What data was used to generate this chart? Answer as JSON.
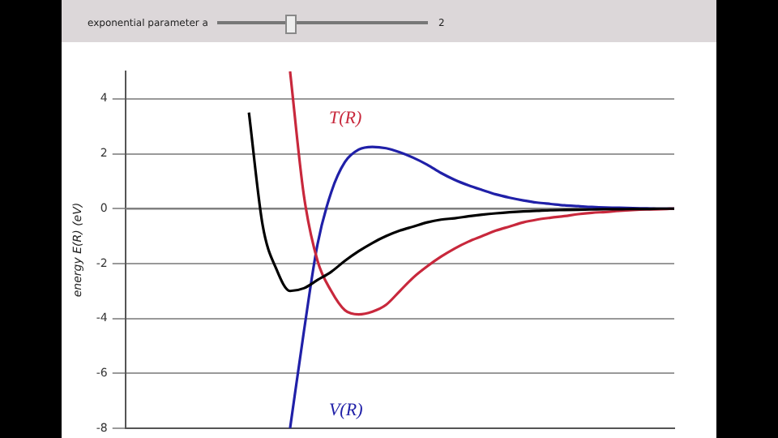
{
  "chart_data": {
    "type": "line",
    "ylabel": "energy E(R) (eV)",
    "annotations": [
      "exponential parameter a",
      "2"
    ],
    "categories": [
      null,
      null,
      null,
      null,
      null,
      null,
      null,
      null,
      null,
      null,
      null,
      null,
      null,
      null,
      null,
      null,
      null,
      null,
      null,
      null,
      null,
      null,
      null,
      null,
      null,
      null,
      null,
      null,
      null,
      null,
      null,
      null,
      null,
      null,
      null,
      null,
      null,
      null,
      null,
      null,
      null
    ],
    "series": [
      {
        "color": "#000000",
        "values": [
          null,
          null,
          null,
          null,
          null,
          null,
          null,
          null,
          null,
          3.5,
          -0.6,
          -2.2,
          -3.0,
          -2.9,
          -2.6,
          -2.3,
          -1.9,
          -1.55,
          -1.25,
          -1.0,
          -0.8,
          -0.65,
          -0.5,
          -0.4,
          -0.35,
          -0.28,
          -0.22,
          -0.17,
          -0.13,
          -0.1,
          -0.08,
          -0.06,
          -0.05,
          -0.04,
          -0.03,
          -0.02,
          -0.02,
          -0.01,
          -0.01,
          0,
          0
        ]
      },
      {
        "name": "T(R)",
        "color": "#c8283c",
        "values": [
          null,
          null,
          null,
          null,
          null,
          null,
          null,
          null,
          null,
          null,
          null,
          null,
          5,
          0.5,
          -1.9,
          -3.0,
          -3.7,
          -3.85,
          -3.75,
          -3.5,
          -3.0,
          -2.5,
          -2.1,
          -1.75,
          -1.45,
          -1.2,
          -1.0,
          -0.8,
          -0.65,
          -0.5,
          -0.4,
          -0.33,
          -0.27,
          -0.2,
          -0.15,
          -0.12,
          -0.08,
          -0.05,
          -0.03,
          -0.02,
          0
        ]
      },
      {
        "name": "V(R)",
        "color": "#2020a8",
        "values": [
          null,
          null,
          null,
          null,
          null,
          null,
          null,
          null,
          null,
          null,
          null,
          null,
          -8,
          -4.5,
          -1.3,
          0.6,
          1.7,
          2.15,
          2.25,
          2.2,
          2.05,
          1.85,
          1.6,
          1.3,
          1.05,
          0.85,
          0.68,
          0.52,
          0.4,
          0.3,
          0.22,
          0.17,
          0.12,
          0.09,
          0.06,
          0.04,
          0.03,
          0.02,
          0.01,
          0,
          0
        ]
      }
    ],
    "ylim": [
      -8,
      5
    ],
    "yticks": [
      -8,
      -6,
      -4,
      -2,
      0,
      2,
      4
    ],
    "grid": "y",
    "legend": false,
    "marker": "none",
    "line_style": "solid",
    "tick_labels": "y"
  }
}
